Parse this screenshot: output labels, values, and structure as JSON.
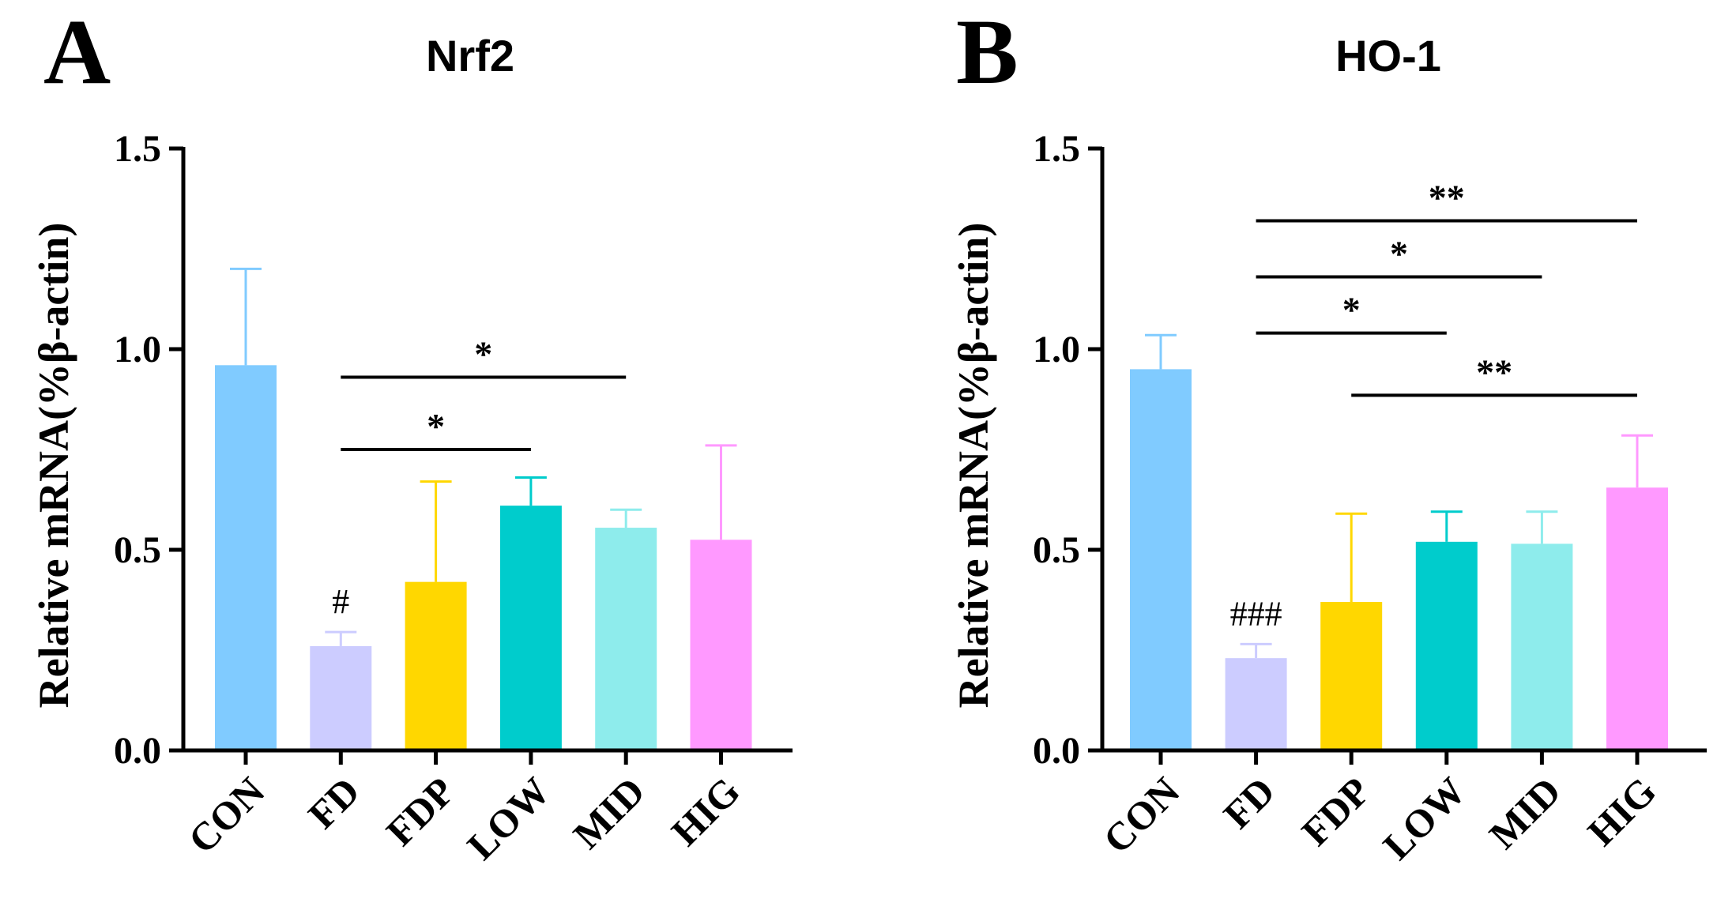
{
  "chart_data": [
    {
      "type": "bar",
      "panel": "A",
      "title": "Nrf2",
      "ylabel": "Relative mRNA(%β-actin)",
      "xlabel": "",
      "ylim": [
        0,
        1.5
      ],
      "yticks": [
        "0.0",
        "0.5",
        "1.0",
        "1.5"
      ],
      "categories": [
        "CON",
        "FD",
        "FDP",
        "LOW",
        "MID",
        "HIG"
      ],
      "values": [
        0.96,
        0.26,
        0.42,
        0.61,
        0.555,
        0.525
      ],
      "errors": [
        0.24,
        0.035,
        0.25,
        0.07,
        0.045,
        0.235
      ],
      "colors": [
        "#80CBFF",
        "#CCCCFF",
        "#FFD700",
        "#00CCCC",
        "#8EECEC",
        "#FF99FF"
      ],
      "markers": [
        {
          "category": "FD",
          "text": "#"
        }
      ],
      "brackets": [
        {
          "from": "FD",
          "to": "LOW",
          "y": 0.75,
          "text": "*"
        },
        {
          "from": "FD",
          "to": "MID",
          "y": 0.93,
          "text": "*"
        }
      ]
    },
    {
      "type": "bar",
      "panel": "B",
      "title": "HO-1",
      "ylabel": "Relative mRNA(%β-actin)",
      "xlabel": "",
      "ylim": [
        0,
        1.5
      ],
      "yticks": [
        "0.0",
        "0.5",
        "1.0",
        "1.5"
      ],
      "categories": [
        "CON",
        "FD",
        "FDP",
        "LOW",
        "MID",
        "HIG"
      ],
      "values": [
        0.95,
        0.23,
        0.37,
        0.52,
        0.515,
        0.655
      ],
      "errors": [
        0.085,
        0.035,
        0.22,
        0.075,
        0.08,
        0.13
      ],
      "colors": [
        "#80CBFF",
        "#CCCCFF",
        "#FFD700",
        "#00CCCC",
        "#8EECEC",
        "#FF99FF"
      ],
      "markers": [
        {
          "category": "FD",
          "text": "###"
        }
      ],
      "brackets": [
        {
          "from": "FD",
          "to": "HIG",
          "y": 1.32,
          "text": "**"
        },
        {
          "from": "FD",
          "to": "MID",
          "y": 1.18,
          "text": "*"
        },
        {
          "from": "FD",
          "to": "LOW",
          "y": 1.04,
          "text": "*"
        },
        {
          "from": "FDP",
          "to": "HIG",
          "y": 0.885,
          "text": "**"
        }
      ]
    }
  ]
}
